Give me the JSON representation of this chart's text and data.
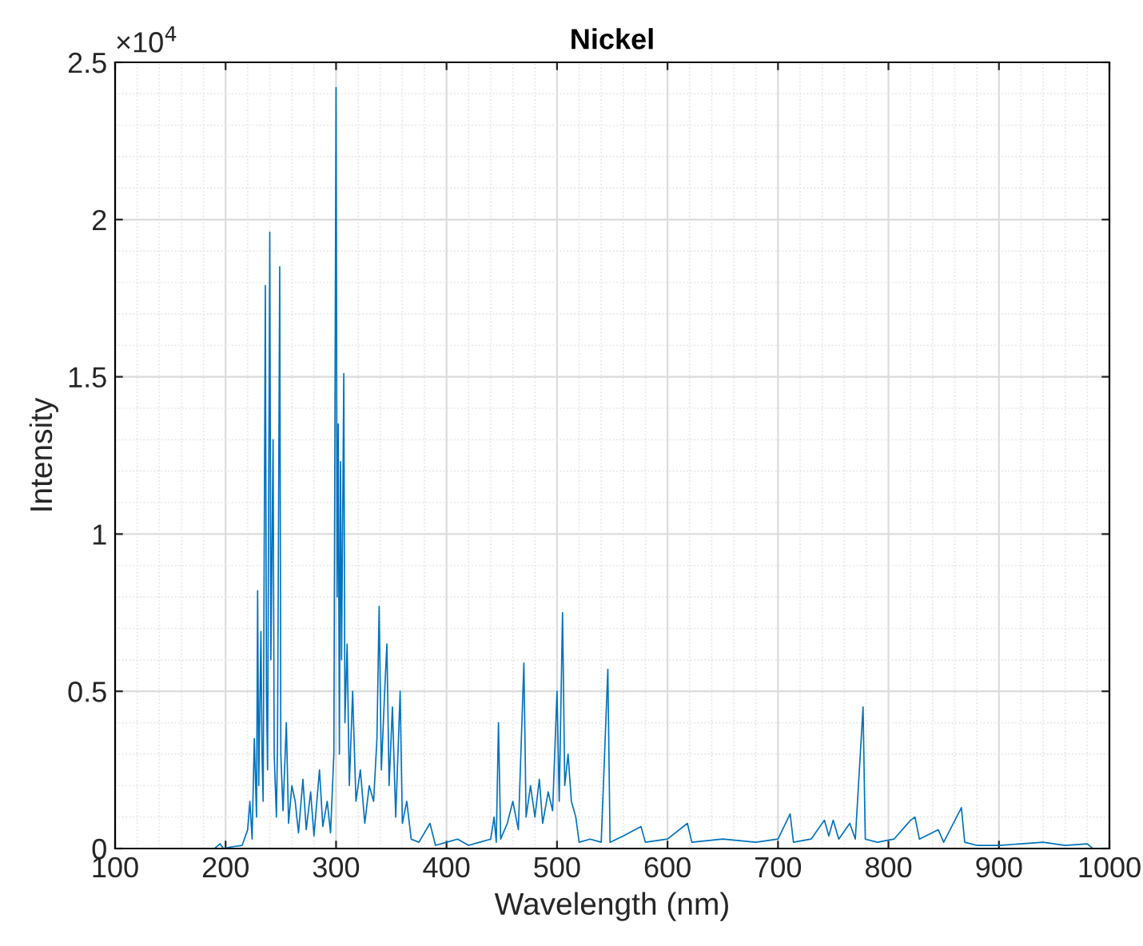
{
  "chart_data": {
    "type": "line",
    "title": "Nickel",
    "xlabel": "Wavelength (nm)",
    "ylabel": "Intensity",
    "annotations": [
      "×10$^{4}$"
    ],
    "xlim": [
      100,
      1000
    ],
    "xticks": [
      100,
      200,
      300,
      400,
      500,
      600,
      700,
      800,
      900,
      1000
    ],
    "ylim": [
      0,
      2.5
    ],
    "yticks": [
      0,
      0.5,
      1,
      1.5,
      2,
      2.5
    ],
    "grid": true,
    "legend": false,
    "line_style": "solid",
    "marker": "none",
    "series": [
      {
        "color": "#0072bd",
        "x": [
          190,
          195,
          198,
          205,
          215,
          220,
          222,
          224,
          226,
          228,
          229,
          230,
          232,
          233,
          234,
          236,
          237,
          238,
          240,
          241,
          243,
          244,
          246,
          247,
          249,
          250,
          252,
          255,
          257,
          260,
          263,
          266,
          270,
          273,
          277,
          280,
          285,
          288,
          292,
          295,
          298,
          300,
          301,
          302,
          303,
          304,
          305,
          307,
          308,
          310,
          312,
          315,
          318,
          322,
          326,
          330,
          334,
          337,
          339,
          341,
          344,
          346,
          348,
          351,
          354,
          358,
          360,
          364,
          368,
          375,
          385,
          390,
          400,
          410,
          420,
          430,
          440,
          443,
          445,
          447,
          449,
          455,
          460,
          465,
          470,
          472,
          476,
          480,
          484,
          487,
          492,
          496,
          500,
          502,
          505,
          507,
          510,
          513,
          517,
          520,
          530,
          540,
          546,
          548,
          560,
          576,
          580,
          600,
          618,
          622,
          650,
          680,
          700,
          711,
          714,
          730,
          742,
          746,
          750,
          755,
          765,
          770,
          777,
          779,
          790,
          805,
          820,
          824,
          828,
          845,
          850,
          866,
          869,
          880,
          900,
          920,
          940,
          960,
          980,
          985
        ],
        "values": [
          0,
          0.015,
          0,
          0.005,
          0.01,
          0.06,
          0.15,
          0.03,
          0.35,
          0.1,
          0.82,
          0.2,
          0.69,
          0.3,
          0.15,
          1.79,
          0.5,
          0.25,
          1.96,
          0.6,
          1.3,
          0.3,
          0.1,
          0.33,
          1.85,
          0.3,
          0.12,
          0.4,
          0.08,
          0.2,
          0.15,
          0.05,
          0.22,
          0.06,
          0.18,
          0.04,
          0.25,
          0.07,
          0.15,
          0.05,
          0.3,
          2.42,
          0.8,
          1.35,
          0.3,
          1.23,
          0.6,
          1.51,
          0.4,
          0.65,
          0.2,
          0.5,
          0.15,
          0.25,
          0.08,
          0.2,
          0.15,
          0.35,
          0.77,
          0.25,
          0.5,
          0.65,
          0.2,
          0.45,
          0.1,
          0.5,
          0.08,
          0.15,
          0.03,
          0.02,
          0.08,
          0.01,
          0.02,
          0.03,
          0.01,
          0.02,
          0.03,
          0.1,
          0.02,
          0.4,
          0.03,
          0.08,
          0.15,
          0.06,
          0.59,
          0.1,
          0.2,
          0.1,
          0.22,
          0.08,
          0.18,
          0.12,
          0.5,
          0.15,
          0.75,
          0.2,
          0.3,
          0.15,
          0.1,
          0.02,
          0.03,
          0.02,
          0.57,
          0.02,
          0.04,
          0.07,
          0.02,
          0.03,
          0.08,
          0.02,
          0.03,
          0.02,
          0.03,
          0.11,
          0.02,
          0.03,
          0.09,
          0.04,
          0.09,
          0.03,
          0.08,
          0.03,
          0.45,
          0.03,
          0.02,
          0.03,
          0.09,
          0.1,
          0.03,
          0.06,
          0.02,
          0.13,
          0.02,
          0.01,
          0.01,
          0.015,
          0.02,
          0.01,
          0.015,
          0
        ]
      }
    ]
  }
}
